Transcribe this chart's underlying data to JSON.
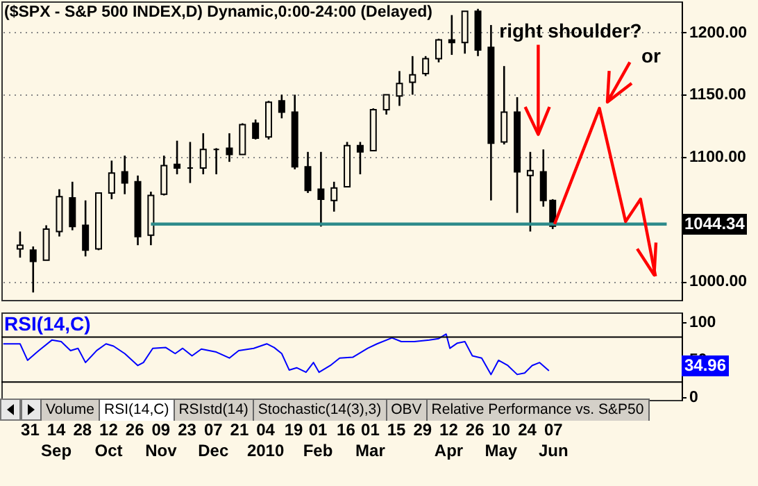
{
  "chart_data": [
    {
      "type": "candlestick",
      "title": "($SPX - S&P 500 INDEX,D) Dynamic,0:00-24:00 (Delayed)",
      "color": "#000000",
      "x": [
        "2009-08-26",
        "2009-09-02",
        "2009-09-09",
        "2009-09-16",
        "2009-09-23",
        "2009-09-30",
        "2009-10-07",
        "2009-10-14",
        "2009-10-21",
        "2009-10-28",
        "2009-11-04",
        "2009-11-11",
        "2009-11-18",
        "2009-11-25",
        "2009-12-02",
        "2009-12-09",
        "2009-12-16",
        "2009-12-23",
        "2009-12-30",
        "2010-01-06",
        "2010-01-13",
        "2010-01-20",
        "2010-01-27",
        "2010-02-03",
        "2010-02-10",
        "2010-02-17",
        "2010-02-24",
        "2010-03-03",
        "2010-03-10",
        "2010-03-17",
        "2010-03-24",
        "2010-03-31",
        "2010-04-07",
        "2010-04-14",
        "2010-04-21",
        "2010-04-28",
        "2010-05-05",
        "2010-05-12",
        "2010-05-19",
        "2010-05-26",
        "2010-06-02",
        "2010-06-07"
      ],
      "ohlc": [
        [
          1026,
          1040,
          1019,
          1029
        ],
        [
          1025,
          1028,
          991,
          1016
        ],
        [
          1017,
          1045,
          1017,
          1042
        ],
        [
          1040,
          1074,
          1036,
          1068
        ],
        [
          1067,
          1080,
          1041,
          1044
        ],
        [
          1045,
          1065,
          1020,
          1025
        ],
        [
          1026,
          1071,
          1025,
          1071
        ],
        [
          1071,
          1097,
          1066,
          1087
        ],
        [
          1088,
          1101,
          1070,
          1079
        ],
        [
          1080,
          1085,
          1029,
          1036
        ],
        [
          1037,
          1072,
          1029,
          1069
        ],
        [
          1070,
          1101,
          1069,
          1093
        ],
        [
          1094,
          1113,
          1086,
          1091
        ],
        [
          1091,
          1112,
          1079,
          1091
        ],
        [
          1091,
          1119,
          1086,
          1106
        ],
        [
          1106,
          1107,
          1086,
          1106
        ],
        [
          1107,
          1119,
          1096,
          1102
        ],
        [
          1102,
          1127,
          1102,
          1126
        ],
        [
          1127,
          1130,
          1114,
          1115
        ],
        [
          1116,
          1145,
          1114,
          1144
        ],
        [
          1145,
          1150,
          1131,
          1136
        ],
        [
          1136,
          1150,
          1090,
          1092
        ],
        [
          1092,
          1104,
          1071,
          1073
        ],
        [
          1074,
          1104,
          1044,
          1066
        ],
        [
          1065,
          1080,
          1056,
          1075
        ],
        [
          1076,
          1112,
          1076,
          1109
        ],
        [
          1109,
          1112,
          1086,
          1104
        ],
        [
          1105,
          1139,
          1105,
          1138
        ],
        [
          1138,
          1150,
          1134,
          1150
        ],
        [
          1149,
          1169,
          1141,
          1159
        ],
        [
          1160,
          1181,
          1150,
          1166
        ],
        [
          1167,
          1181,
          1165,
          1179
        ],
        [
          1179,
          1195,
          1176,
          1194
        ],
        [
          1194,
          1214,
          1182,
          1192
        ],
        [
          1192,
          1217,
          1183,
          1217
        ],
        [
          1217,
          1219,
          1181,
          1186
        ],
        [
          1188,
          1206,
          1065,
          1111
        ],
        [
          1112,
          1173,
          1110,
          1136
        ],
        [
          1136,
          1148,
          1055,
          1088
        ],
        [
          1085,
          1104,
          1040,
          1089
        ],
        [
          1088,
          1106,
          1060,
          1065
        ],
        [
          1065,
          1066,
          1042,
          1044.34
        ]
      ],
      "series": [
        {
          "type": "line",
          "x": [
            "2009-11-04",
            "2010-08-07"
          ],
          "values": [
            1046,
            1046
          ],
          "color": "#2e8b8b"
        },
        {
          "type": "line",
          "x": [
            "2010-06-08",
            "2010-07-02",
            "2010-07-16",
            "2010-07-24",
            "2010-08-01"
          ],
          "values": [
            1046,
            1139,
            1048,
            1066,
            1004
          ],
          "color": "#ff0000"
        }
      ],
      "xlim": [
        "2009-08-16",
        "2010-08-15"
      ],
      "ylim": [
        985,
        1225
      ],
      "yticks": [
        {
          "value": 1000,
          "label": "1000.00"
        },
        {
          "value": 1100,
          "label": "1100.00"
        },
        {
          "value": 1150,
          "label": "1150.00"
        },
        {
          "value": 1200,
          "label": "1200.00"
        }
      ],
      "grid": "y",
      "tick_labels": "y",
      "annotations": [
        "right shoulder?",
        "or",
        "1044.34"
      ]
    },
    {
      "type": "line",
      "title": "RSI(14,C)",
      "color": "#0000ff",
      "x": [
        "2009-08-17",
        "2009-08-26",
        "2009-08-30",
        "2009-09-05",
        "2009-09-12",
        "2009-09-17",
        "2009-09-22",
        "2009-09-26",
        "2009-09-30",
        "2009-10-06",
        "2009-10-11",
        "2009-10-15",
        "2009-10-21",
        "2009-10-28",
        "2009-10-31",
        "2009-11-05",
        "2009-11-12",
        "2009-11-17",
        "2009-11-21",
        "2009-11-26",
        "2009-12-01",
        "2009-12-09",
        "2009-12-16",
        "2009-12-21",
        "2009-12-29",
        "2010-01-05",
        "2010-01-09",
        "2010-01-13",
        "2010-01-17",
        "2010-01-21",
        "2010-01-26",
        "2010-01-30",
        "2010-02-02",
        "2010-02-08",
        "2010-02-13",
        "2010-02-20",
        "2010-02-28",
        "2010-03-05",
        "2010-03-13",
        "2010-03-18",
        "2010-03-25",
        "2010-04-02",
        "2010-04-07",
        "2010-04-11",
        "2010-04-13",
        "2010-04-17",
        "2010-04-21",
        "2010-04-25",
        "2010-04-30",
        "2010-05-05",
        "2010-05-09",
        "2010-05-14",
        "2010-05-19",
        "2010-05-23",
        "2010-05-27",
        "2010-05-31",
        "2010-06-05"
      ],
      "values": [
        71,
        71,
        49,
        62,
        76,
        74,
        62,
        65,
        46,
        62,
        71,
        68,
        58,
        42,
        46,
        65,
        66,
        58,
        65,
        55,
        64,
        60,
        52,
        62,
        65,
        71,
        66,
        58,
        36,
        39,
        33,
        46,
        33,
        42,
        52,
        53,
        65,
        71,
        79,
        74,
        74,
        76,
        78,
        84,
        65,
        72,
        74,
        55,
        52,
        30,
        49,
        42,
        30,
        32,
        42,
        46,
        34.96
      ],
      "xlim": [
        "2009-08-16",
        "2010-08-15"
      ],
      "ylim": [
        -4,
        113
      ],
      "yticks": [
        0,
        50,
        100
      ],
      "xticks": [
        {
          "value": "2009-08-31",
          "label": "31"
        },
        {
          "value": "2009-09-14",
          "label": "14\nSep"
        },
        {
          "value": "2009-09-28",
          "label": "28"
        },
        {
          "value": "2009-10-12",
          "label": "12\nOct"
        },
        {
          "value": "2009-10-26",
          "label": "26"
        },
        {
          "value": "2009-11-09",
          "label": "09\nNov"
        },
        {
          "value": "2009-11-23",
          "label": "23"
        },
        {
          "value": "2009-12-07",
          "label": "07\nDec"
        },
        {
          "value": "2009-12-21",
          "label": "21"
        },
        {
          "value": "2010-01-04",
          "label": "04\n2010"
        },
        {
          "value": "2010-01-19",
          "label": "19"
        },
        {
          "value": "2010-02-01",
          "label": "01\nFeb"
        },
        {
          "value": "2010-02-16",
          "label": "16"
        },
        {
          "value": "2010-03-01",
          "label": "01\nMar"
        },
        {
          "value": "2010-03-15",
          "label": "15"
        },
        {
          "value": "2010-03-29",
          "label": "29"
        },
        {
          "value": "2010-04-12",
          "label": "12\nApr"
        },
        {
          "value": "2010-04-26",
          "label": "26"
        },
        {
          "value": "2010-05-10",
          "label": "10\nMay"
        },
        {
          "value": "2010-05-24",
          "label": "24"
        },
        {
          "value": "2010-06-07",
          "label": "07\nJun"
        }
      ],
      "ref_lines": [
        {
          "axis": "y",
          "value": 80,
          "color": "#000000"
        },
        {
          "axis": "y",
          "value": 20,
          "color": "#000000"
        }
      ],
      "annotations": [
        "34.96",
        "Volume",
        "RSI(14,C)",
        "RSIstd(14)",
        "Stochastic(14(3),3)",
        "OBV",
        "Relative Performance vs. S&P50"
      ]
    }
  ]
}
